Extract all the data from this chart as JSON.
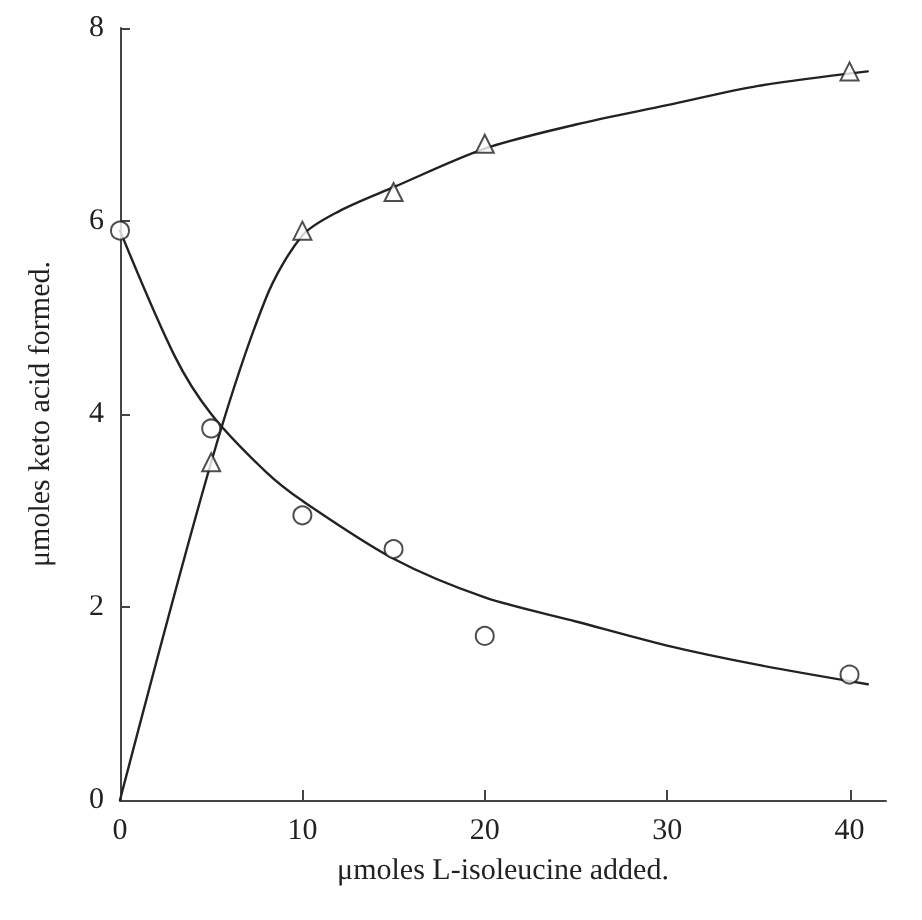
{
  "chart_data": {
    "type": "scatter",
    "xlabel": "μmoles L-isoleucine added.",
    "ylabel": "μmoles keto acid formed.",
    "xlim": [
      0,
      42
    ],
    "ylim": [
      0,
      8
    ],
    "xticks": [
      0,
      10,
      20,
      30,
      40
    ],
    "yticks": [
      0,
      2,
      4,
      6,
      8
    ],
    "grid": false,
    "series": [
      {
        "marker": "triangle",
        "color": "#222222",
        "x": [
          5,
          10,
          15,
          20,
          40
        ],
        "values": [
          3.5,
          5.9,
          6.3,
          6.8,
          7.55
        ]
      },
      {
        "marker": "circle",
        "color": "#222222",
        "x": [
          0,
          5,
          10,
          15,
          20,
          40
        ],
        "values": [
          5.9,
          3.85,
          2.95,
          2.6,
          1.7,
          1.3
        ]
      },
      {
        "type": "line",
        "marker": "none",
        "line_style": "solid",
        "color": "#222222",
        "x": [
          0,
          5,
          8,
          10,
          12,
          15,
          20,
          25,
          30,
          35,
          41
        ],
        "values": [
          0,
          3.5,
          5.2,
          5.85,
          6.1,
          6.35,
          6.75,
          7.0,
          7.2,
          7.4,
          7.55
        ]
      },
      {
        "type": "line",
        "marker": "none",
        "line_style": "solid",
        "color": "#222222",
        "x": [
          0,
          3,
          5,
          8,
          10,
          15,
          20,
          25,
          30,
          35,
          41
        ],
        "values": [
          5.9,
          4.6,
          4.0,
          3.4,
          3.1,
          2.5,
          2.1,
          1.85,
          1.6,
          1.4,
          1.2
        ]
      }
    ]
  }
}
